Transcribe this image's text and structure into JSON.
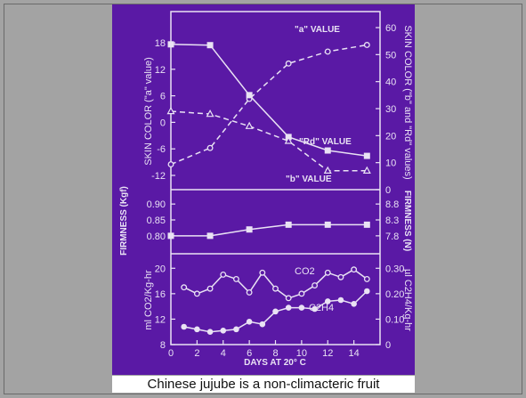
{
  "slide": {
    "background_color": "#a3a3a3",
    "figure_background_color": "#5a19a5",
    "line_color": "#e9e2f4",
    "caption": "Chinese jujube is a non-climacteric fruit"
  },
  "chart_data": [
    {
      "type": "line",
      "panel": "skin-color",
      "x": [
        0,
        3,
        6,
        9,
        12,
        15
      ],
      "xlim": [
        0,
        15
      ],
      "ylabel": "SKIN COLOR (\"a\" value)",
      "ylim": [
        -12,
        18
      ],
      "yticks": [
        "-12",
        "-6",
        "0",
        "6",
        "12",
        "18"
      ],
      "ylabel_right": "SKIN COLOR (\"b\" and \"Rd\" values)",
      "ylim_right": [
        0,
        60
      ],
      "yticks_right": [
        "0",
        "10",
        "20",
        "30",
        "40",
        "50",
        "60"
      ],
      "series": [
        {
          "name": "\"a\" VALUE",
          "axis": "left",
          "marker": "open-circle",
          "style": "dashed",
          "x": [
            0,
            3,
            6,
            9,
            12,
            15
          ],
          "values": [
            -9.5,
            -5.8,
            5.3,
            13.3,
            16.0,
            17.5
          ]
        },
        {
          "name": "\"Rd\" VALUE",
          "axis": "right",
          "marker": "square",
          "style": "solid",
          "x": [
            0,
            3,
            6,
            9,
            12,
            15
          ],
          "values": [
            53.8,
            53.5,
            35.0,
            19.5,
            14.5,
            12.5
          ]
        },
        {
          "name": "\"b\" VALUE",
          "axis": "right",
          "marker": "open-triangle",
          "style": "dashed",
          "x": [
            0,
            3,
            6,
            9,
            12,
            15
          ],
          "values": [
            29.0,
            28.0,
            23.5,
            18.0,
            7.0,
            7.0
          ]
        }
      ]
    },
    {
      "type": "line",
      "panel": "firmness",
      "ylabel": "FIRMNESS (Kgf)",
      "ylim": [
        0.78,
        0.92
      ],
      "yticks": [
        "0.80",
        "0.85",
        "0.90"
      ],
      "ylabel_right": "FIRMNESS (N)",
      "yticks_right": [
        "7.8",
        "8.3",
        "8.8"
      ],
      "series": [
        {
          "marker": "square",
          "style": "solid",
          "x": [
            0,
            3,
            6,
            9,
            12,
            15
          ],
          "values": [
            0.8,
            0.8,
            0.82,
            0.835,
            0.835,
            0.835
          ]
        }
      ]
    },
    {
      "type": "line",
      "panel": "respiration",
      "xlabel": "DAYS AT 20° C",
      "xlim": [
        0,
        16
      ],
      "xticks": [
        "0",
        "2",
        "4",
        "6",
        "8",
        "10",
        "12",
        "14"
      ],
      "ylabel": "ml CO2/Kg-hr",
      "ylim": [
        8,
        22
      ],
      "yticks": [
        "8",
        "12",
        "16",
        "20"
      ],
      "ylabel_right": "µl C2H4/Kg-hr",
      "ylim_right": [
        0,
        0.35
      ],
      "yticks_right": [
        "0",
        "0.10",
        "0.20",
        "0.30"
      ],
      "series": [
        {
          "name": "CO2",
          "axis": "left",
          "marker": "open-circle",
          "style": "solid",
          "x": [
            1,
            2,
            3,
            4,
            5,
            6,
            7,
            8,
            9,
            10,
            11,
            12,
            13,
            14,
            15
          ],
          "values": [
            17.0,
            16.0,
            16.8,
            19.0,
            18.3,
            16.2,
            19.3,
            16.8,
            15.3,
            16.0,
            17.3,
            19.3,
            18.6,
            19.8,
            18.3
          ]
        },
        {
          "name": "C2H4",
          "axis": "right",
          "marker": "filled-circle",
          "style": "solid",
          "x": [
            1,
            2,
            3,
            4,
            5,
            6,
            7,
            8,
            9,
            10,
            11,
            12,
            13,
            14,
            15
          ],
          "values": [
            0.07,
            0.06,
            0.05,
            0.055,
            0.06,
            0.09,
            0.08,
            0.13,
            0.145,
            0.145,
            0.14,
            0.17,
            0.175,
            0.16,
            0.21
          ]
        }
      ]
    }
  ]
}
